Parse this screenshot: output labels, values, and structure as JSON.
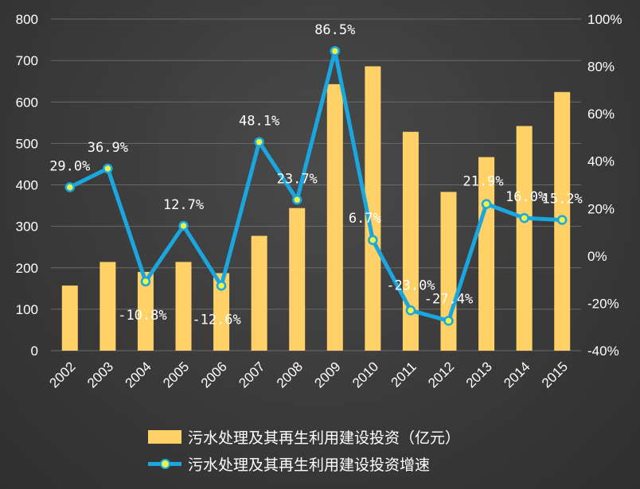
{
  "chart_data": {
    "type": "bar+line",
    "categories": [
      "2002",
      "2003",
      "2004",
      "2005",
      "2006",
      "2007",
      "2008",
      "2009",
      "2010",
      "2011",
      "2012",
      "2013",
      "2014",
      "2015"
    ],
    "series": [
      {
        "name": "污水处理及其再生利用建设投资（亿元）",
        "type": "bar",
        "axis": "left",
        "color": "#ffd166",
        "values": [
          157,
          214,
          190,
          214,
          187,
          277,
          344,
          643,
          686,
          528,
          383,
          467,
          542,
          624
        ]
      },
      {
        "name": "污水处理及其再生利用建设投资增速",
        "type": "line",
        "axis": "right",
        "color": "#1aa7e0",
        "marker_color": "#e9f34a",
        "values": [
          29.0,
          36.9,
          -10.8,
          12.7,
          -12.6,
          48.1,
          23.7,
          86.5,
          6.7,
          -23.0,
          -27.4,
          21.9,
          16.0,
          15.2
        ],
        "labels": [
          "29.0%",
          "36.9%",
          "-10.8%",
          "12.7%",
          "-12.6%",
          "48.1%",
          "23.7%",
          "86.5%",
          "6.7%",
          "-23.0%",
          "-27.4%",
          "21.9%",
          "16.0%",
          "15.2%"
        ]
      }
    ],
    "y_left": {
      "min": 0,
      "max": 800,
      "ticks": [
        "0",
        "100",
        "200",
        "300",
        "400",
        "500",
        "600",
        "700",
        "800"
      ]
    },
    "y_right": {
      "min": -40,
      "max": 100,
      "ticks": [
        "-40%",
        "-20%",
        "0%",
        "20%",
        "40%",
        "60%",
        "80%",
        "100%"
      ]
    },
    "grid": true,
    "legend_position": "bottom"
  }
}
